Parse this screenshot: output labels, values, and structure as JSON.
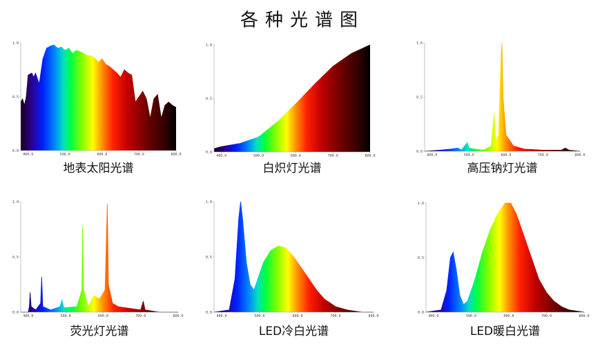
{
  "title": "各种光谱图",
  "chart_data": [
    {
      "type": "area",
      "title": "地表太阳光谱",
      "fill": "spectrum",
      "x": [
        380,
        385,
        390,
        395,
        400,
        410,
        415,
        420,
        430,
        440,
        450,
        460,
        470,
        480,
        490,
        500,
        510,
        520,
        530,
        540,
        550,
        560,
        570,
        580,
        590,
        600,
        610,
        620,
        630,
        640,
        650,
        660,
        670,
        680,
        690,
        700,
        710,
        720,
        730,
        740,
        750,
        760,
        770,
        780,
        790,
        800
      ],
      "values": [
        0.45,
        0.48,
        0.42,
        0.5,
        0.7,
        0.72,
        0.68,
        0.72,
        0.62,
        0.85,
        0.95,
        0.97,
        0.98,
        0.95,
        0.96,
        0.93,
        0.95,
        0.9,
        0.93,
        0.92,
        0.9,
        0.88,
        0.88,
        0.86,
        0.82,
        0.85,
        0.8,
        0.78,
        0.75,
        0.72,
        0.68,
        0.75,
        0.72,
        0.7,
        0.45,
        0.5,
        0.55,
        0.48,
        0.3,
        0.48,
        0.52,
        0.3,
        0.42,
        0.45,
        0.42,
        0.4
      ],
      "xlim": [
        380,
        800
      ],
      "ylim": [
        0,
        1
      ],
      "xticks": [
        {
          "value": 400,
          "label": "400.0"
        },
        {
          "value": 500,
          "label": "500.0"
        },
        {
          "value": 600,
          "label": "600.0"
        },
        {
          "value": 700,
          "label": "700.0"
        },
        {
          "value": 800,
          "label": "800.0"
        }
      ],
      "yticks": [
        {
          "value": 0,
          "label": "0.0"
        },
        {
          "value": 0.5,
          "label": "0.5"
        },
        {
          "value": 1,
          "label": "1.0"
        }
      ]
    },
    {
      "type": "area",
      "title": "白炽灯光谱",
      "fill": "spectrum",
      "x": [
        380,
        400,
        450,
        500,
        550,
        600,
        650,
        700,
        750,
        800
      ],
      "values": [
        0.03,
        0.05,
        0.08,
        0.14,
        0.28,
        0.45,
        0.63,
        0.8,
        0.92,
        1.0
      ],
      "xlim": [
        380,
        800
      ],
      "ylim": [
        0,
        1
      ],
      "xticks": [
        {
          "value": 400,
          "label": "400.0"
        },
        {
          "value": 500,
          "label": "500.0"
        },
        {
          "value": 600,
          "label": "600.0"
        },
        {
          "value": 700,
          "label": "700.0"
        },
        {
          "value": 800,
          "label": "800.0"
        }
      ],
      "yticks": [
        {
          "value": 0,
          "label": "0.0"
        },
        {
          "value": 0.5,
          "label": "0.5"
        },
        {
          "value": 1,
          "label": "1.0"
        }
      ]
    },
    {
      "type": "area",
      "title": "高压钠灯光谱",
      "fill": "spectrum",
      "x": [
        380,
        420,
        450,
        470,
        480,
        495,
        500,
        515,
        540,
        560,
        568,
        572,
        580,
        587,
        589,
        592,
        600,
        620,
        650,
        700,
        750,
        760,
        770,
        800
      ],
      "values": [
        0,
        0.01,
        0.02,
        0.03,
        0.01,
        0.08,
        0.03,
        0.02,
        0.01,
        0.05,
        0.35,
        0.1,
        0.15,
        0.9,
        1.0,
        0.5,
        0.15,
        0.05,
        0.02,
        0.01,
        0.01,
        0.03,
        0.01,
        0
      ],
      "xlim": [
        380,
        800
      ],
      "ylim": [
        0,
        1
      ],
      "xticks": [
        {
          "value": 400,
          "label": "400.0"
        },
        {
          "value": 500,
          "label": "500.0"
        },
        {
          "value": 600,
          "label": "600.0"
        },
        {
          "value": 700,
          "label": "700.0"
        },
        {
          "value": 800,
          "label": "800.0"
        }
      ],
      "yticks": [
        {
          "value": 0,
          "label": "0.0"
        },
        {
          "value": 0.5,
          "label": "0.5"
        },
        {
          "value": 1,
          "label": "1.0"
        }
      ]
    },
    {
      "type": "area",
      "title": "荧光灯光谱",
      "fill": "spectrum",
      "x": [
        380,
        400,
        403,
        405,
        408,
        420,
        433,
        436,
        439,
        460,
        485,
        490,
        495,
        530,
        543,
        545,
        548,
        560,
        575,
        590,
        605,
        611,
        614,
        625,
        640,
        660,
        700,
        707,
        712,
        750,
        800
      ],
      "values": [
        0,
        0,
        0.05,
        0.18,
        0.05,
        0.02,
        0.08,
        0.32,
        0.05,
        0.02,
        0.05,
        0.11,
        0.04,
        0.05,
        0.2,
        0.78,
        0.2,
        0.05,
        0.15,
        0.12,
        0.2,
        0.98,
        0.25,
        0.08,
        0.05,
        0.04,
        0.02,
        0.1,
        0.02,
        0,
        0
      ],
      "xlim": [
        380,
        800
      ],
      "ylim": [
        0,
        1
      ],
      "xticks": [
        {
          "value": 400,
          "label": "400.0"
        },
        {
          "value": 500,
          "label": "500.0"
        },
        {
          "value": 600,
          "label": "600.0"
        },
        {
          "value": 700,
          "label": "700.0"
        },
        {
          "value": 800,
          "label": "800.0"
        }
      ],
      "yticks": [
        {
          "value": 0,
          "label": "0.0"
        },
        {
          "value": 0.5,
          "label": "0.5"
        },
        {
          "value": 1,
          "label": "1.0"
        }
      ]
    },
    {
      "type": "area",
      "title": "LED冷白光谱",
      "fill": "spectrum",
      "x": [
        380,
        420,
        435,
        445,
        450,
        455,
        465,
        475,
        485,
        495,
        510,
        530,
        550,
        570,
        590,
        610,
        630,
        650,
        670,
        700,
        730,
        770,
        800
      ],
      "values": [
        0,
        0.02,
        0.3,
        0.85,
        1.0,
        0.85,
        0.45,
        0.25,
        0.2,
        0.3,
        0.45,
        0.56,
        0.6,
        0.58,
        0.5,
        0.4,
        0.3,
        0.2,
        0.12,
        0.05,
        0.02,
        0,
        0
      ],
      "xlim": [
        380,
        800
      ],
      "ylim": [
        0,
        1
      ],
      "xticks": [
        {
          "value": 400,
          "label": "400.0"
        },
        {
          "value": 500,
          "label": "500.0"
        },
        {
          "value": 600,
          "label": "600.0"
        },
        {
          "value": 700,
          "label": "700.0"
        },
        {
          "value": 800,
          "label": "800.0"
        }
      ],
      "yticks": [
        {
          "value": 0,
          "label": "0.0"
        },
        {
          "value": 0.5,
          "label": "0.5"
        },
        {
          "value": 1,
          "label": "1.0"
        }
      ]
    },
    {
      "type": "area",
      "title": "LED暖白光谱",
      "fill": "spectrum",
      "x": [
        380,
        420,
        435,
        445,
        452,
        460,
        470,
        480,
        490,
        510,
        530,
        550,
        570,
        590,
        605,
        620,
        640,
        660,
        680,
        700,
        720,
        740,
        760,
        800
      ],
      "values": [
        0,
        0.02,
        0.2,
        0.5,
        0.55,
        0.4,
        0.15,
        0.07,
        0.1,
        0.3,
        0.55,
        0.75,
        0.9,
        1.0,
        1.0,
        0.9,
        0.7,
        0.5,
        0.3,
        0.18,
        0.1,
        0.05,
        0.02,
        0
      ],
      "xlim": [
        380,
        800
      ],
      "ylim": [
        0,
        1
      ],
      "xticks": [
        {
          "value": 400,
          "label": "400.0"
        },
        {
          "value": 500,
          "label": "500.0"
        },
        {
          "value": 600,
          "label": "600.0"
        },
        {
          "value": 700,
          "label": "700.0"
        },
        {
          "value": 800,
          "label": "800.0"
        }
      ],
      "yticks": [
        {
          "value": 0,
          "label": "0.0"
        },
        {
          "value": 0.5,
          "label": "0.5"
        },
        {
          "value": 1,
          "label": "1.0"
        }
      ]
    }
  ]
}
